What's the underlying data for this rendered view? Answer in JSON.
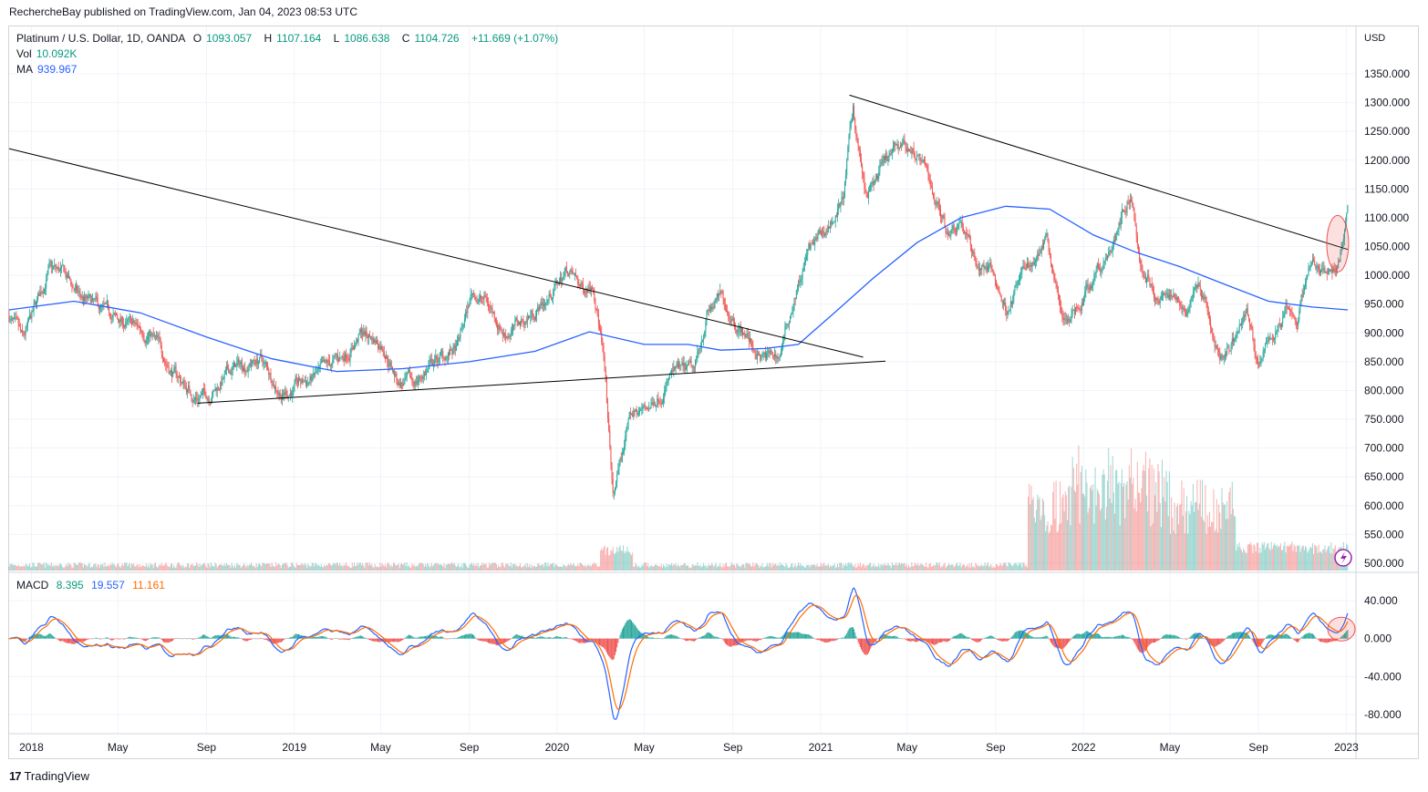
{
  "attribution": "RechercheBay published on TradingView.com, Jan 04, 2023 08:53 UTC",
  "legend": {
    "symbol": "Platinum / U.S. Dollar, 1D, OANDA",
    "o_label": "O",
    "o": "1093.057",
    "h_label": "H",
    "h": "1107.164",
    "l_label": "L",
    "l": "1086.638",
    "c_label": "C",
    "c": "1104.726",
    "change": "+11.669 (+1.07%)",
    "vol_label": "Vol",
    "vol": "10.092K",
    "ma_label": "MA",
    "ma": "939.967",
    "macd_label": "MACD",
    "macd_hist": "8.395",
    "macd_line": "19.557",
    "macd_signal": "11.161"
  },
  "footer": {
    "brand": "TradingView"
  },
  "colors": {
    "up": "#26a69a",
    "down": "#ef5350",
    "ma": "#2962ff",
    "macd": "#2962ff",
    "signal": "#ff6d00",
    "trend": "#000000",
    "grid": "#f0f3fa"
  },
  "chart_data": {
    "type": "candlestick",
    "currency": "USD",
    "x_ticks": [
      "2018",
      "May",
      "Sep",
      "2019",
      "May",
      "Sep",
      "2020",
      "May",
      "Sep",
      "2021",
      "May",
      "Sep",
      "2022",
      "May",
      "Sep",
      "2023"
    ],
    "price_ticks": [
      1350,
      1300,
      1250,
      1200,
      1150,
      1100,
      1050,
      1000,
      950,
      900,
      850,
      800,
      750,
      700,
      650,
      600,
      550,
      500
    ],
    "price_range": [
      490,
      1390
    ],
    "macd_ticks": [
      40,
      0,
      -40,
      -80
    ],
    "macd_range": [
      -90,
      55
    ],
    "price_path": [
      {
        "d": "2017-12-01",
        "p": 930
      },
      {
        "d": "2017-12-20",
        "p": 880
      },
      {
        "d": "2018-01-05",
        "p": 935
      },
      {
        "d": "2018-01-25",
        "p": 1010
      },
      {
        "d": "2018-02-15",
        "p": 1000
      },
      {
        "d": "2018-03-10",
        "p": 960
      },
      {
        "d": "2018-04-10",
        "p": 935
      },
      {
        "d": "2018-05-10",
        "p": 915
      },
      {
        "d": "2018-06-15",
        "p": 900
      },
      {
        "d": "2018-07-15",
        "p": 835
      },
      {
        "d": "2018-08-15",
        "p": 790
      },
      {
        "d": "2018-09-05",
        "p": 795
      },
      {
        "d": "2018-10-10",
        "p": 840
      },
      {
        "d": "2018-11-15",
        "p": 855
      },
      {
        "d": "2018-12-15",
        "p": 795
      },
      {
        "d": "2019-01-10",
        "p": 810
      },
      {
        "d": "2019-02-10",
        "p": 830
      },
      {
        "d": "2019-03-10",
        "p": 860
      },
      {
        "d": "2019-04-05",
        "p": 900
      },
      {
        "d": "2019-05-05",
        "p": 880
      },
      {
        "d": "2019-05-25",
        "p": 815
      },
      {
        "d": "2019-06-15",
        "p": 810
      },
      {
        "d": "2019-07-15",
        "p": 850
      },
      {
        "d": "2019-08-15",
        "p": 870
      },
      {
        "d": "2019-09-05",
        "p": 970
      },
      {
        "d": "2019-09-25",
        "p": 955
      },
      {
        "d": "2019-10-20",
        "p": 900
      },
      {
        "d": "2019-11-15",
        "p": 920
      },
      {
        "d": "2019-12-20",
        "p": 960
      },
      {
        "d": "2020-01-15",
        "p": 1010
      },
      {
        "d": "2020-02-05",
        "p": 975
      },
      {
        "d": "2020-02-20",
        "p": 995
      },
      {
        "d": "2020-03-05",
        "p": 870
      },
      {
        "d": "2020-03-19",
        "p": 600
      },
      {
        "d": "2020-03-25",
        "p": 640
      },
      {
        "d": "2020-04-10",
        "p": 745
      },
      {
        "d": "2020-05-10",
        "p": 775
      },
      {
        "d": "2020-06-10",
        "p": 830
      },
      {
        "d": "2020-07-10",
        "p": 830
      },
      {
        "d": "2020-07-27",
        "p": 935
      },
      {
        "d": "2020-08-15",
        "p": 960
      },
      {
        "d": "2020-09-15",
        "p": 905
      },
      {
        "d": "2020-10-10",
        "p": 855
      },
      {
        "d": "2020-11-05",
        "p": 860
      },
      {
        "d": "2020-11-25",
        "p": 960
      },
      {
        "d": "2020-12-15",
        "p": 1040
      },
      {
        "d": "2021-01-10",
        "p": 1080
      },
      {
        "d": "2021-02-01",
        "p": 1130
      },
      {
        "d": "2021-02-15",
        "p": 1290
      },
      {
        "d": "2021-03-05",
        "p": 1130
      },
      {
        "d": "2021-03-25",
        "p": 1180
      },
      {
        "d": "2021-04-25",
        "p": 1230
      },
      {
        "d": "2021-05-15",
        "p": 1210
      },
      {
        "d": "2021-06-05",
        "p": 1150
      },
      {
        "d": "2021-06-25",
        "p": 1080
      },
      {
        "d": "2021-07-15",
        "p": 1100
      },
      {
        "d": "2021-08-05",
        "p": 1020
      },
      {
        "d": "2021-08-25",
        "p": 1010
      },
      {
        "d": "2021-09-15",
        "p": 940
      },
      {
        "d": "2021-10-15",
        "p": 1020
      },
      {
        "d": "2021-11-10",
        "p": 1070
      },
      {
        "d": "2021-12-01",
        "p": 950
      },
      {
        "d": "2021-12-20",
        "p": 935
      },
      {
        "d": "2022-01-15",
        "p": 1000
      },
      {
        "d": "2022-02-10",
        "p": 1050
      },
      {
        "d": "2022-03-07",
        "p": 1150
      },
      {
        "d": "2022-03-20",
        "p": 1030
      },
      {
        "d": "2022-04-10",
        "p": 970
      },
      {
        "d": "2022-05-10",
        "p": 960
      },
      {
        "d": "2022-05-25",
        "p": 955
      },
      {
        "d": "2022-06-10",
        "p": 990
      },
      {
        "d": "2022-07-10",
        "p": 860
      },
      {
        "d": "2022-07-25",
        "p": 880
      },
      {
        "d": "2022-08-15",
        "p": 935
      },
      {
        "d": "2022-09-01",
        "p": 835
      },
      {
        "d": "2022-09-20",
        "p": 895
      },
      {
        "d": "2022-10-10",
        "p": 935
      },
      {
        "d": "2022-10-25",
        "p": 925
      },
      {
        "d": "2022-11-15",
        "p": 1030
      },
      {
        "d": "2022-12-05",
        "p": 1000
      },
      {
        "d": "2022-12-20",
        "p": 1010
      },
      {
        "d": "2023-01-03",
        "p": 1105
      }
    ],
    "ma_path": [
      {
        "d": "2017-12-01",
        "p": 940
      },
      {
        "d": "2018-03-01",
        "p": 955
      },
      {
        "d": "2018-06-01",
        "p": 935
      },
      {
        "d": "2018-09-01",
        "p": 893
      },
      {
        "d": "2018-12-01",
        "p": 855
      },
      {
        "d": "2019-03-01",
        "p": 833
      },
      {
        "d": "2019-06-01",
        "p": 838
      },
      {
        "d": "2019-09-01",
        "p": 850
      },
      {
        "d": "2019-12-01",
        "p": 868
      },
      {
        "d": "2020-02-15",
        "p": 902
      },
      {
        "d": "2020-05-01",
        "p": 880
      },
      {
        "d": "2020-07-01",
        "p": 880
      },
      {
        "d": "2020-08-15",
        "p": 870
      },
      {
        "d": "2020-10-15",
        "p": 873
      },
      {
        "d": "2020-12-01",
        "p": 880
      },
      {
        "d": "2021-01-20",
        "p": 935
      },
      {
        "d": "2021-03-15",
        "p": 995
      },
      {
        "d": "2021-05-15",
        "p": 1057
      },
      {
        "d": "2021-07-15",
        "p": 1100
      },
      {
        "d": "2021-09-15",
        "p": 1120
      },
      {
        "d": "2021-11-15",
        "p": 1115
      },
      {
        "d": "2022-01-15",
        "p": 1070
      },
      {
        "d": "2022-03-15",
        "p": 1040
      },
      {
        "d": "2022-05-15",
        "p": 1015
      },
      {
        "d": "2022-07-15",
        "p": 985
      },
      {
        "d": "2022-09-15",
        "p": 955
      },
      {
        "d": "2022-11-15",
        "p": 945
      },
      {
        "d": "2023-01-03",
        "p": 940
      }
    ],
    "trendlines": [
      {
        "from": {
          "d": "2017-12-01",
          "p": 1220
        },
        "to": {
          "d": "2021-03-01",
          "p": 858
        }
      },
      {
        "from": {
          "d": "2018-08-20",
          "p": 778
        },
        "to": {
          "d": "2021-04-01",
          "p": 851
        }
      },
      {
        "from": {
          "d": "2021-02-10",
          "p": 1313
        },
        "to": {
          "d": "2023-01-03",
          "p": 1045
        }
      }
    ],
    "highlight": {
      "d": "2022-12-20",
      "p": 1055
    },
    "volume_note": "volume pane shares the price axis region (bottom)"
  }
}
